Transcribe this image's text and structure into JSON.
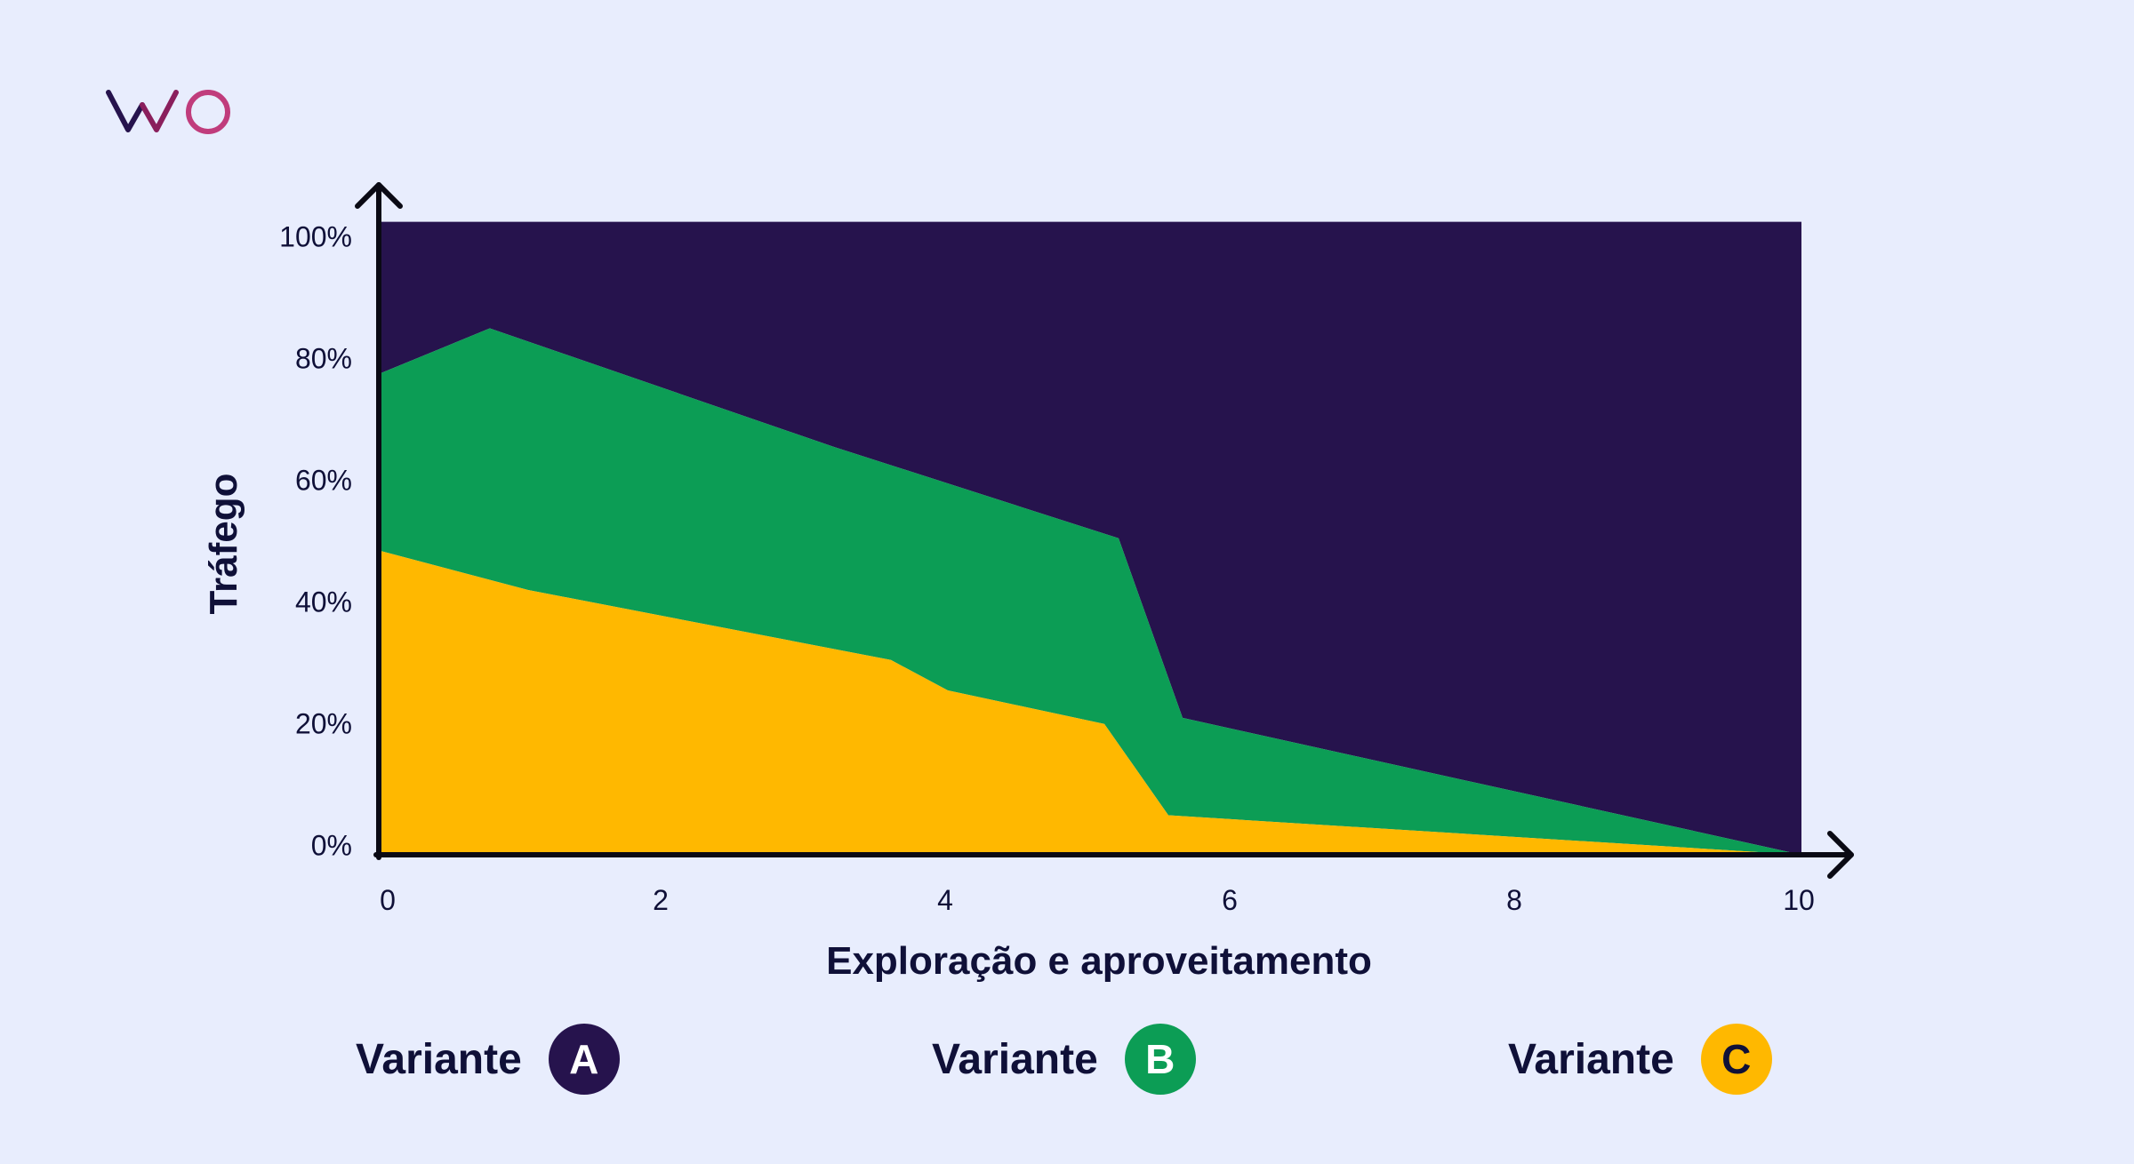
{
  "logo": {
    "text": "VWO"
  },
  "chart_data": {
    "type": "area",
    "stacked": true,
    "xlabel": "Exploração e aproveitamento",
    "ylabel": "Tráfego",
    "xlim": [
      0,
      10
    ],
    "ylim": [
      0,
      100
    ],
    "x_ticks": [
      0,
      2,
      4,
      6,
      8,
      10
    ],
    "y_ticks": [
      0,
      20,
      40,
      60,
      80,
      100
    ],
    "y_tick_labels": [
      "0%",
      "20%",
      "40%",
      "60%",
      "80%",
      "100%"
    ],
    "grid": false,
    "top_boundary": 104,
    "boundaries": {
      "c_top": [
        {
          "x": 0,
          "y": 50
        },
        {
          "x": 1.05,
          "y": 43.5
        },
        {
          "x": 3.6,
          "y": 32
        },
        {
          "x": 4.0,
          "y": 27
        },
        {
          "x": 5.1,
          "y": 21.5
        },
        {
          "x": 5.55,
          "y": 6.5
        },
        {
          "x": 10,
          "y": 0
        }
      ],
      "b_top": [
        {
          "x": 0,
          "y": 79
        },
        {
          "x": 0.78,
          "y": 86.5
        },
        {
          "x": 3.2,
          "y": 67
        },
        {
          "x": 5.2,
          "y": 52
        },
        {
          "x": 5.65,
          "y": 22.5
        },
        {
          "x": 10,
          "y": 0
        }
      ]
    },
    "series": [
      {
        "name": "A",
        "color": "#26134D"
      },
      {
        "name": "B",
        "color": "#0C9D55"
      },
      {
        "name": "C",
        "color": "#FFB800"
      }
    ]
  },
  "legend": [
    {
      "label": "Variante",
      "badge": "A",
      "color": "#26134D",
      "text_color": "#FFFFFF"
    },
    {
      "label": "Variante",
      "badge": "B",
      "color": "#0C9D55",
      "text_color": "#FFFFFF"
    },
    {
      "label": "Variante",
      "badge": "C",
      "color": "#FFB800",
      "text_color": "#0F1038"
    }
  ]
}
